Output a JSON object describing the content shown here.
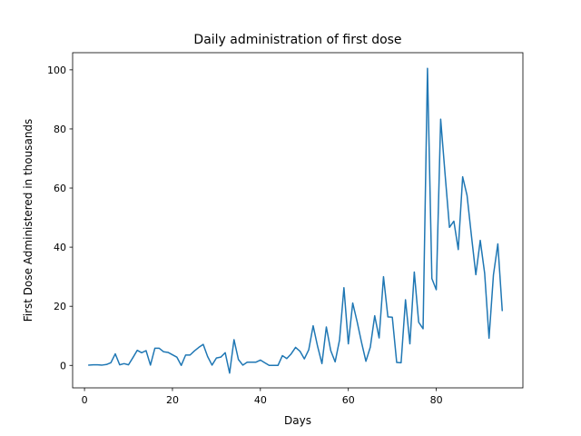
{
  "chart_data": {
    "type": "line",
    "title": "Daily administration of first dose",
    "xlabel": "Days",
    "ylabel": "First Dose Administered in thousands",
    "xlim": [
      -2.7,
      99.7
    ],
    "ylim": [
      -7.6,
      105.8
    ],
    "xticks": [
      0,
      20,
      40,
      60,
      80
    ],
    "yticks": [
      0,
      20,
      40,
      60,
      80,
      100
    ],
    "grid": false,
    "legend": false,
    "line_color": "#1f77b4",
    "series": [
      {
        "x": [
          1,
          2,
          3,
          4,
          5,
          6,
          7,
          8,
          9,
          10,
          11,
          12,
          13,
          14,
          15,
          16,
          17,
          18,
          19,
          20,
          21,
          22,
          23,
          24,
          25,
          26,
          27,
          28,
          29,
          30,
          31,
          32,
          33,
          34,
          35,
          36,
          37,
          38,
          39,
          40,
          41,
          42,
          43,
          44,
          45,
          46,
          47,
          48,
          49,
          50,
          51,
          52,
          53,
          54,
          55,
          56,
          57,
          58,
          59,
          60,
          61,
          62,
          63,
          64,
          65,
          66,
          67,
          68,
          69,
          70,
          71,
          72,
          73,
          74,
          75,
          76,
          77,
          78,
          79,
          80,
          81,
          82,
          83,
          84,
          85,
          86,
          87,
          88,
          89,
          90,
          91,
          92,
          93,
          94,
          95
        ],
        "values": [
          0.1,
          0.2,
          0.2,
          0.1,
          0.3,
          0.9,
          3.9,
          0.2,
          0.6,
          0.2,
          2.6,
          5.1,
          4.3,
          5.0,
          0.1,
          5.8,
          5.8,
          4.6,
          4.4,
          3.6,
          2.8,
          0.0,
          3.5,
          3.5,
          4.9,
          6.1,
          7.1,
          3.0,
          0.1,
          2.5,
          2.8,
          4.3,
          -2.6,
          8.7,
          2.0,
          0.1,
          1.1,
          1.1,
          1.1,
          1.8,
          0.9,
          0.0,
          0.0,
          0.0,
          3.3,
          2.3,
          3.9,
          6.1,
          4.8,
          2.2,
          5.3,
          13.4,
          6.5,
          0.6,
          13.0,
          5.0,
          1.2,
          8.6,
          26.3,
          7.3,
          21.1,
          14.8,
          7.8,
          1.4,
          6.2,
          16.8,
          9.3,
          30.0,
          16.4,
          16.3,
          1.0,
          0.9,
          22.2,
          7.3,
          31.6,
          14.6,
          12.4,
          100.5,
          29.4,
          25.6,
          83.3,
          64.7,
          46.7,
          48.8,
          39.2,
          63.8,
          57.5,
          43.8,
          30.7,
          42.3,
          31.2,
          9.2,
          30.6,
          41.1,
          18.6
        ]
      }
    ]
  }
}
